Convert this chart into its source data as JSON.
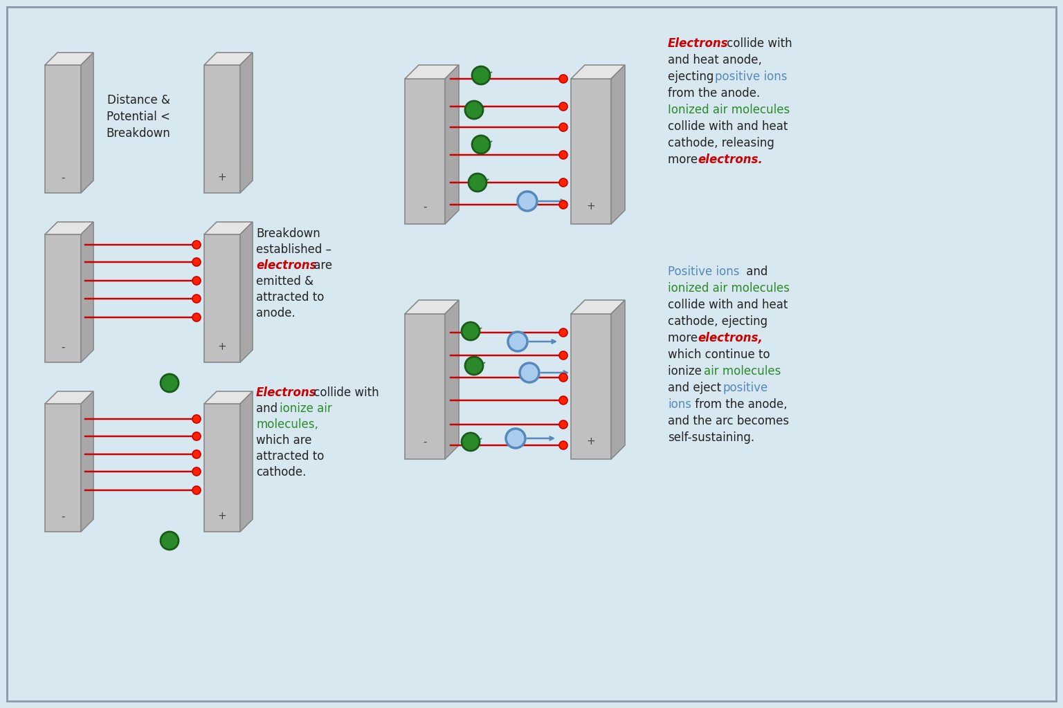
{
  "bg_color": "#d8e8f0",
  "plate_face_color": "#c0c0c0",
  "plate_top_color": "#e5e5e5",
  "plate_side_color": "#a8a8a8",
  "plate_edge_color": "#888888",
  "green_ball_color": "#2a8a2a",
  "green_ball_edge": "#1a5a1a",
  "blue_ball_color": "#aaccee",
  "blue_ball_edge": "#5588bb",
  "red_dot_color": "#ff2200",
  "red_dot_edge": "#cc0000",
  "arrow_red": "#cc0000",
  "arrow_green": "#2a8a2a",
  "arrow_blue": "#5588bb",
  "text_black": "#222222",
  "text_red": "#cc0000",
  "text_green": "#2a8a2a",
  "text_blue": "#5588bb",
  "border_color": "#8899aa",
  "label_color": "#444444",
  "panel1_text": "Distance &\nPotential <\nBreakdown",
  "panel2_lines": [
    "Breakdown",
    "established –",
    "electrons are",
    "emitted &",
    "attracted to",
    "anode."
  ],
  "panel2_red_word": "electrons",
  "panel3_lines": [
    "Electrons collide with",
    "and ionize air",
    "molecules,",
    "which are",
    "attracted to",
    "cathode."
  ],
  "panel3_red": "Electrons",
  "panel3_green": "ionize air\nmolecules,",
  "panel4_lines1": [
    "Electrons collide with",
    "and heat anode,",
    "ejecting positive ions",
    "from the anode.",
    "Ionized air molecules",
    "collide with and heat",
    "cathode, releasing",
    "more electrons."
  ],
  "panel5_lines": [
    "Positive ions and",
    "ionized air molecules",
    "collide with and heat",
    "cathode, ejecting",
    "more electrons,",
    "which continue to",
    "ionize air molecules",
    "and eject positive",
    "ions from the anode,",
    "and the arc becomes",
    "self-sustaining."
  ]
}
